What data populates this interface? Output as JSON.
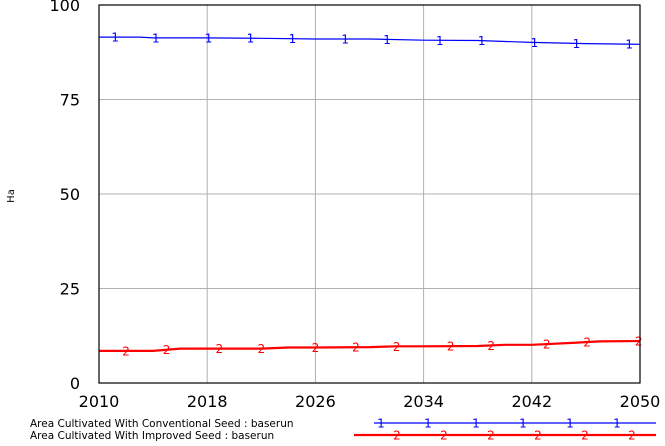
{
  "chart_data": {
    "type": "line",
    "ylabel": "Ha",
    "xlim": [
      2010,
      2050
    ],
    "ylim": [
      0,
      100
    ],
    "x_ticks": [
      2010,
      2018,
      2026,
      2034,
      2042,
      2050
    ],
    "y_ticks": [
      0,
      25,
      50,
      75,
      100
    ],
    "grid": true,
    "legend_position": "bottom",
    "series": [
      {
        "name": "Area Cultivated With Conventional Seed : baserun",
        "marker": "1",
        "color": "#0000ff",
        "x": [
          2010,
          2013,
          2014,
          2018,
          2022,
          2026,
          2030,
          2034,
          2038,
          2042,
          2046,
          2050
        ],
        "y": [
          91.5,
          91.5,
          91.3,
          91.3,
          91.2,
          91.0,
          91.0,
          90.7,
          90.6,
          90.1,
          89.8,
          89.6
        ]
      },
      {
        "name": "Area Cultivated With Improved Seed : baserun",
        "marker": "2",
        "color": "#ff0000",
        "x": [
          2010,
          2014,
          2016,
          2018,
          2022,
          2024,
          2026,
          2030,
          2032,
          2034,
          2038,
          2040,
          2042,
          2045,
          2047,
          2050
        ],
        "y": [
          8.5,
          8.5,
          9.1,
          9.1,
          9.1,
          9.4,
          9.4,
          9.5,
          9.7,
          9.7,
          9.8,
          10.1,
          10.1,
          10.6,
          11.0,
          11.1
        ]
      }
    ]
  }
}
